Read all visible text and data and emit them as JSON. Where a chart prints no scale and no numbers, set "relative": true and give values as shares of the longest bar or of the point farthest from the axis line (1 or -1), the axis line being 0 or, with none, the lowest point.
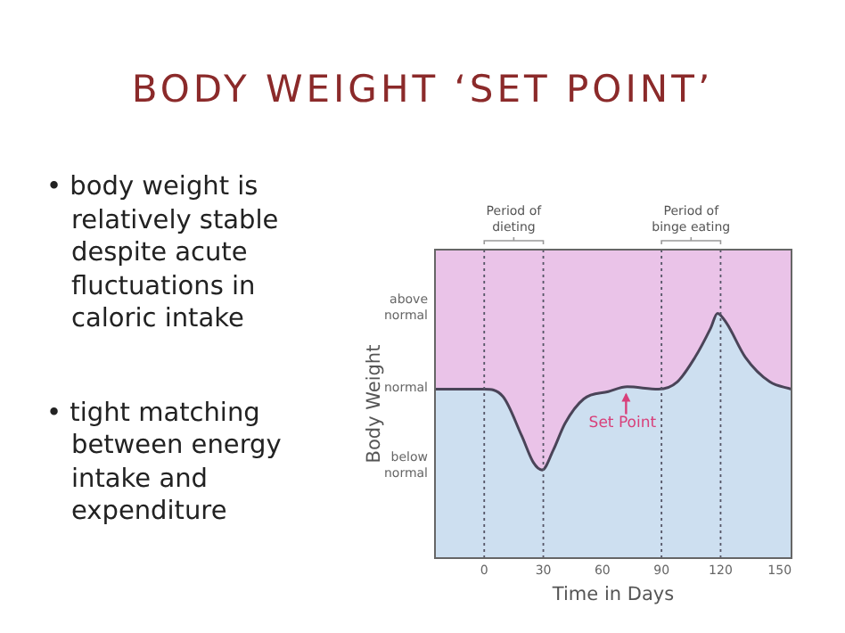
{
  "chart_data": {
    "type": "area",
    "title": "BODY WEIGHT ‘SET POINT’",
    "xlabel": "Time in Days",
    "ylabel": "Body Weight",
    "relative": true,
    "annotations": [
      "• body weight is relatively stable despite acute fluctuations in caloric intake",
      "• tight matching between energy intake and expenditure",
      {
        "text": "Set Point",
        "x": 72,
        "y": 0.69
      },
      "above normal",
      "normal",
      "below normal",
      "Period of dieting",
      "Period of binge eating"
    ],
    "series": [
      {
        "color": "#cddff0",
        "x": [
          -25,
          0,
          9.5,
          19,
          25,
          29.4,
          35,
          41,
          50.5,
          63,
          72.6,
          88.4,
          98,
          107,
          115,
          118.4,
          123,
          132.6,
          145,
          156
        ],
        "values": [
          0.69,
          0.69,
          0.66,
          0.5,
          0.39,
          0.36,
          0.44,
          0.55,
          0.65,
          0.68,
          0.7,
          0.69,
          0.72,
          0.82,
          0.94,
          1,
          0.96,
          0.82,
          0.72,
          0.69
        ]
      }
    ],
    "xlim": [
      -25,
      156
    ],
    "xticks": [
      0,
      30,
      60,
      90,
      120,
      150
    ],
    "bands": [
      {
        "axis": "y",
        "from": 0,
        "to": 1.26,
        "color": "#eac3e8"
      }
    ],
    "ref_lines": [
      {
        "axis": "x",
        "value": 0,
        "line_style": "dotted"
      },
      {
        "axis": "x",
        "value": 30,
        "line_style": "dotted"
      },
      {
        "axis": "x",
        "value": 90,
        "line_style": "dotted"
      },
      {
        "axis": "x",
        "value": 120,
        "line_style": "dotted"
      }
    ],
    "legend": false
  }
}
